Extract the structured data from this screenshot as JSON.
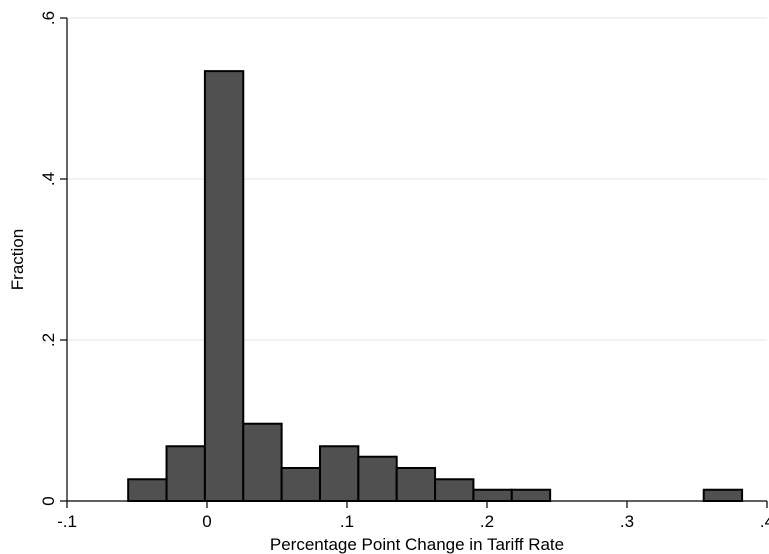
{
  "chart_data": {
    "type": "bar",
    "title": "",
    "xlabel": "Percentage Point Change in Tariff Rate",
    "ylabel": "Fraction",
    "xlim": [
      -0.1,
      0.4
    ],
    "ylim": [
      0,
      0.6
    ],
    "x_ticks": [
      -0.1,
      0,
      0.1,
      0.2,
      0.3,
      0.4
    ],
    "x_tick_labels": [
      "-.1",
      "0",
      ".1",
      ".2",
      ".3",
      ".4"
    ],
    "y_ticks": [
      0,
      0.2,
      0.4,
      0.6
    ],
    "y_tick_labels": [
      "0",
      ".2",
      ".4",
      ".6"
    ],
    "grid": true,
    "bin_width": 0.0274,
    "bins": [
      {
        "start": -0.0563,
        "value": 0.027
      },
      {
        "start": -0.0289,
        "value": 0.068
      },
      {
        "start": -0.0015,
        "value": 0.534
      },
      {
        "start": 0.0259,
        "value": 0.096
      },
      {
        "start": 0.0533,
        "value": 0.041
      },
      {
        "start": 0.0807,
        "value": 0.068
      },
      {
        "start": 0.1081,
        "value": 0.055
      },
      {
        "start": 0.1355,
        "value": 0.041
      },
      {
        "start": 0.1629,
        "value": 0.027
      },
      {
        "start": 0.1903,
        "value": 0.014
      },
      {
        "start": 0.2177,
        "value": 0.014
      },
      {
        "start": 0.3548,
        "value": 0.014
      }
    ],
    "bar_fill": "#505050",
    "bar_stroke": "#000000",
    "grid_color": "#eaeaea"
  }
}
